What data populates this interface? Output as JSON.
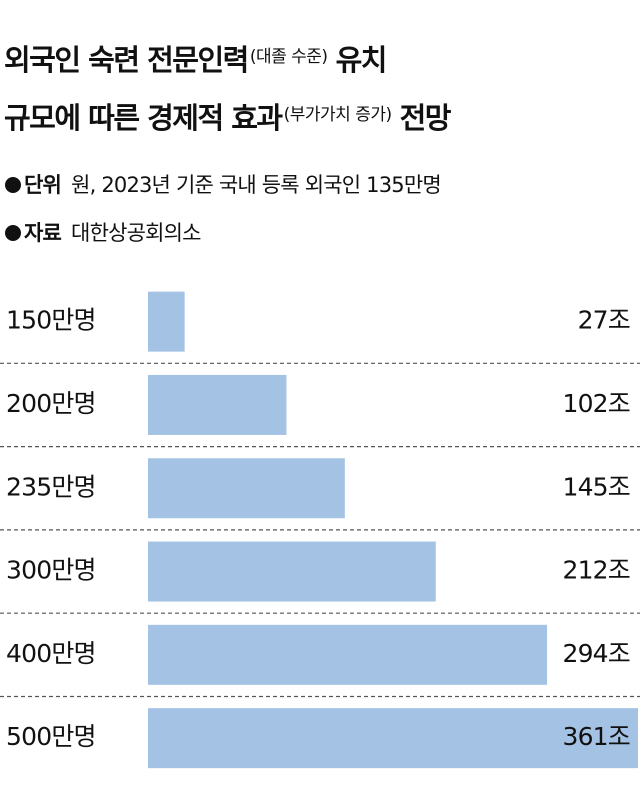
{
  "chart_data": {
    "type": "bar",
    "orientation": "horizontal",
    "title_lines": [
      [
        "외국인 숙련 전문인력",
        "(대졸 수준)",
        "유치"
      ],
      [
        "규모에 따른 경제적 효과",
        "(부가가치 증가)",
        "전망"
      ]
    ],
    "notes": [
      {
        "label": "단위",
        "text": "원, 2023년 기준 국내 등록 외국인 135만명"
      },
      {
        "label": "자료",
        "text": "대한상공회의소"
      }
    ],
    "categories": [
      "150만명",
      "200만명",
      "235만명",
      "300만명",
      "400만명",
      "500만명"
    ],
    "values": [
      27,
      102,
      145,
      212,
      294,
      361
    ],
    "value_labels": [
      "27조",
      "102조",
      "145조",
      "212조",
      "294조",
      "361조"
    ],
    "color": "#a4c2e4"
  }
}
